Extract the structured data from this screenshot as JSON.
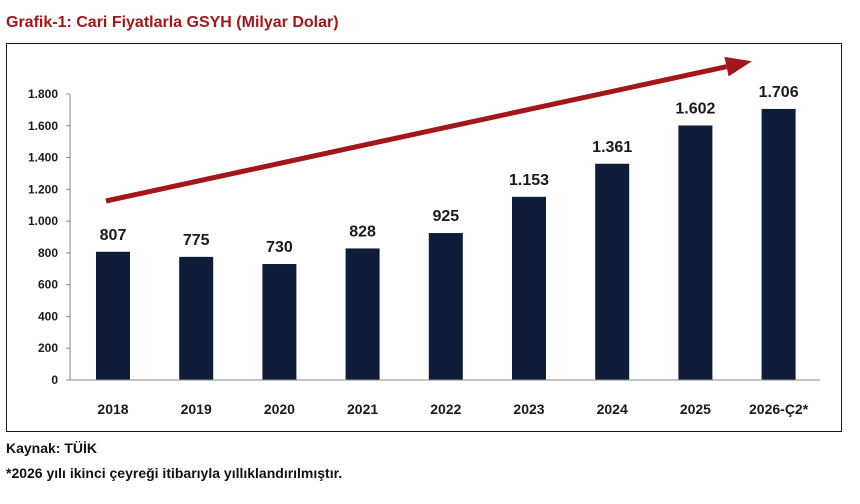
{
  "title": "Grafik-1: Cari Fiyatlarla GSYH (Milyar Dolar)",
  "source": "Kaynak: TÜİK",
  "note": "*2026 yılı ikinci çeyreği itibarıyla yıllıklandırılmıştır.",
  "colors": {
    "title": "#a3161a",
    "bar": "#0e1c3a",
    "arrow": "#a3161a",
    "text": "#1a1a1a"
  },
  "chart_data": {
    "type": "bar",
    "title": "Grafik-1: Cari Fiyatlarla GSYH (Milyar Dolar)",
    "xlabel": "",
    "ylabel": "",
    "categories": [
      "2018",
      "2019",
      "2020",
      "2021",
      "2022",
      "2023",
      "2024",
      "2025",
      "2026-Ç2*"
    ],
    "values": [
      807,
      775,
      730,
      828,
      925,
      1153,
      1361,
      1602,
      1706
    ],
    "data_labels": [
      "807",
      "775",
      "730",
      "828",
      "925",
      "1.153",
      "1.361",
      "1.602",
      "1.706"
    ],
    "ylim": [
      0,
      1800
    ],
    "yticks": [
      0,
      200,
      400,
      600,
      800,
      1000,
      1200,
      1400,
      1600,
      1800
    ],
    "ytick_labels": [
      "0",
      "200",
      "400",
      "600",
      "800",
      "1.000",
      "1.200",
      "1.400",
      "1.600",
      "1.800"
    ],
    "grid": false,
    "legend": "none",
    "trend_arrow": true
  }
}
